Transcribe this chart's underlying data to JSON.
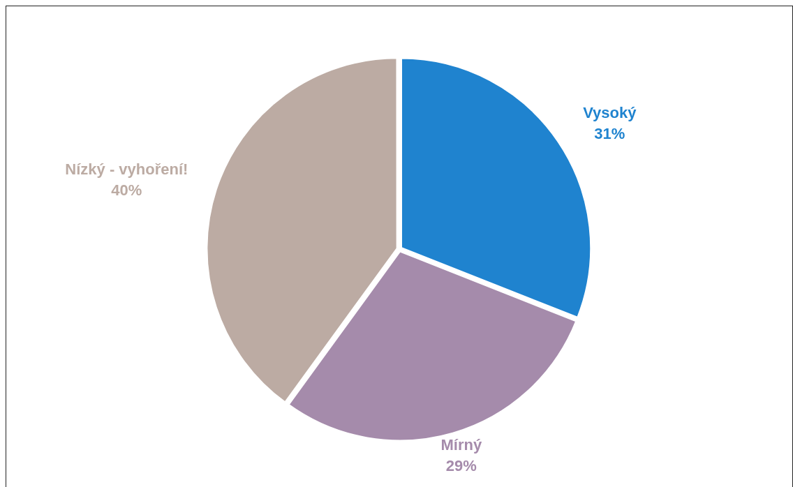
{
  "chart_data": {
    "type": "pie",
    "categories": [
      "Vysoký",
      "Mírný",
      "Nízký - vyhoření!"
    ],
    "values": [
      31,
      29,
      40
    ],
    "colors": [
      "#1f83cf",
      "#a58bab",
      "#bcaba3"
    ],
    "value_labels": [
      "31%",
      "29%",
      "40%"
    ],
    "legend": false
  }
}
